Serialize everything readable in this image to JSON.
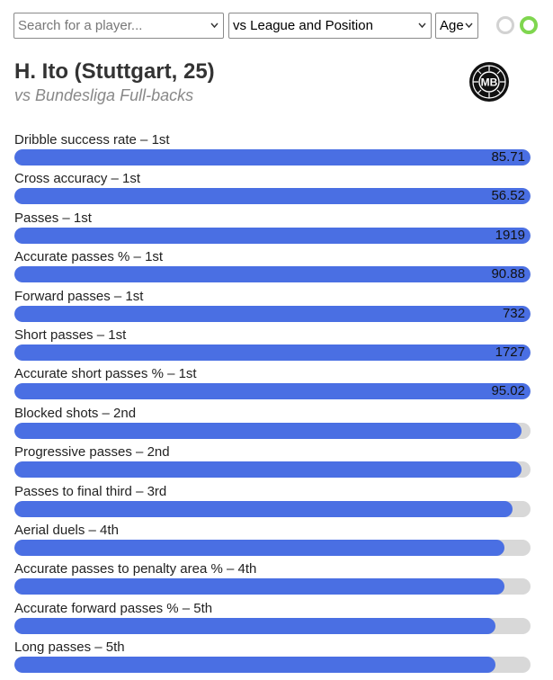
{
  "toolbar": {
    "search_placeholder": "Search for a player...",
    "compare_value": "vs League and Position",
    "age_value": "Age"
  },
  "header": {
    "title": "H. Ito (Stuttgart, 25)",
    "subtitle": "vs Bundesliga Full-backs",
    "logo_text": "MB"
  },
  "colors": {
    "bar": "#4a6fe3",
    "track": "#d8d8d8",
    "toggle_on": "#7fd64f",
    "toggle_off": "#d2d2d2"
  },
  "metrics": [
    {
      "label": "Dribble success rate – 1st",
      "value": "85.71",
      "percentile": 100
    },
    {
      "label": "Cross accuracy – 1st",
      "value": "56.52",
      "percentile": 100
    },
    {
      "label": "Passes – 1st",
      "value": "1919",
      "percentile": 100
    },
    {
      "label": "Accurate passes % – 1st",
      "value": "90.88",
      "percentile": 100
    },
    {
      "label": "Forward passes – 1st",
      "value": "732",
      "percentile": 100
    },
    {
      "label": "Short passes – 1st",
      "value": "1727",
      "percentile": 100
    },
    {
      "label": "Accurate short passes % – 1st",
      "value": "95.02",
      "percentile": 100
    },
    {
      "label": "Blocked shots – 2nd",
      "value": "",
      "percentile": 98.3
    },
    {
      "label": "Progressive passes – 2nd",
      "value": "",
      "percentile": 98.3
    },
    {
      "label": "Passes to final third – 3rd",
      "value": "",
      "percentile": 96.6
    },
    {
      "label": "Aerial duels – 4th",
      "value": "",
      "percentile": 94.9
    },
    {
      "label": "Accurate passes to penalty area % – 4th",
      "value": "",
      "percentile": 94.9
    },
    {
      "label": "Accurate forward passes % – 5th",
      "value": "",
      "percentile": 93.2
    },
    {
      "label": "Long passes – 5th",
      "value": "",
      "percentile": 93.2
    }
  ]
}
